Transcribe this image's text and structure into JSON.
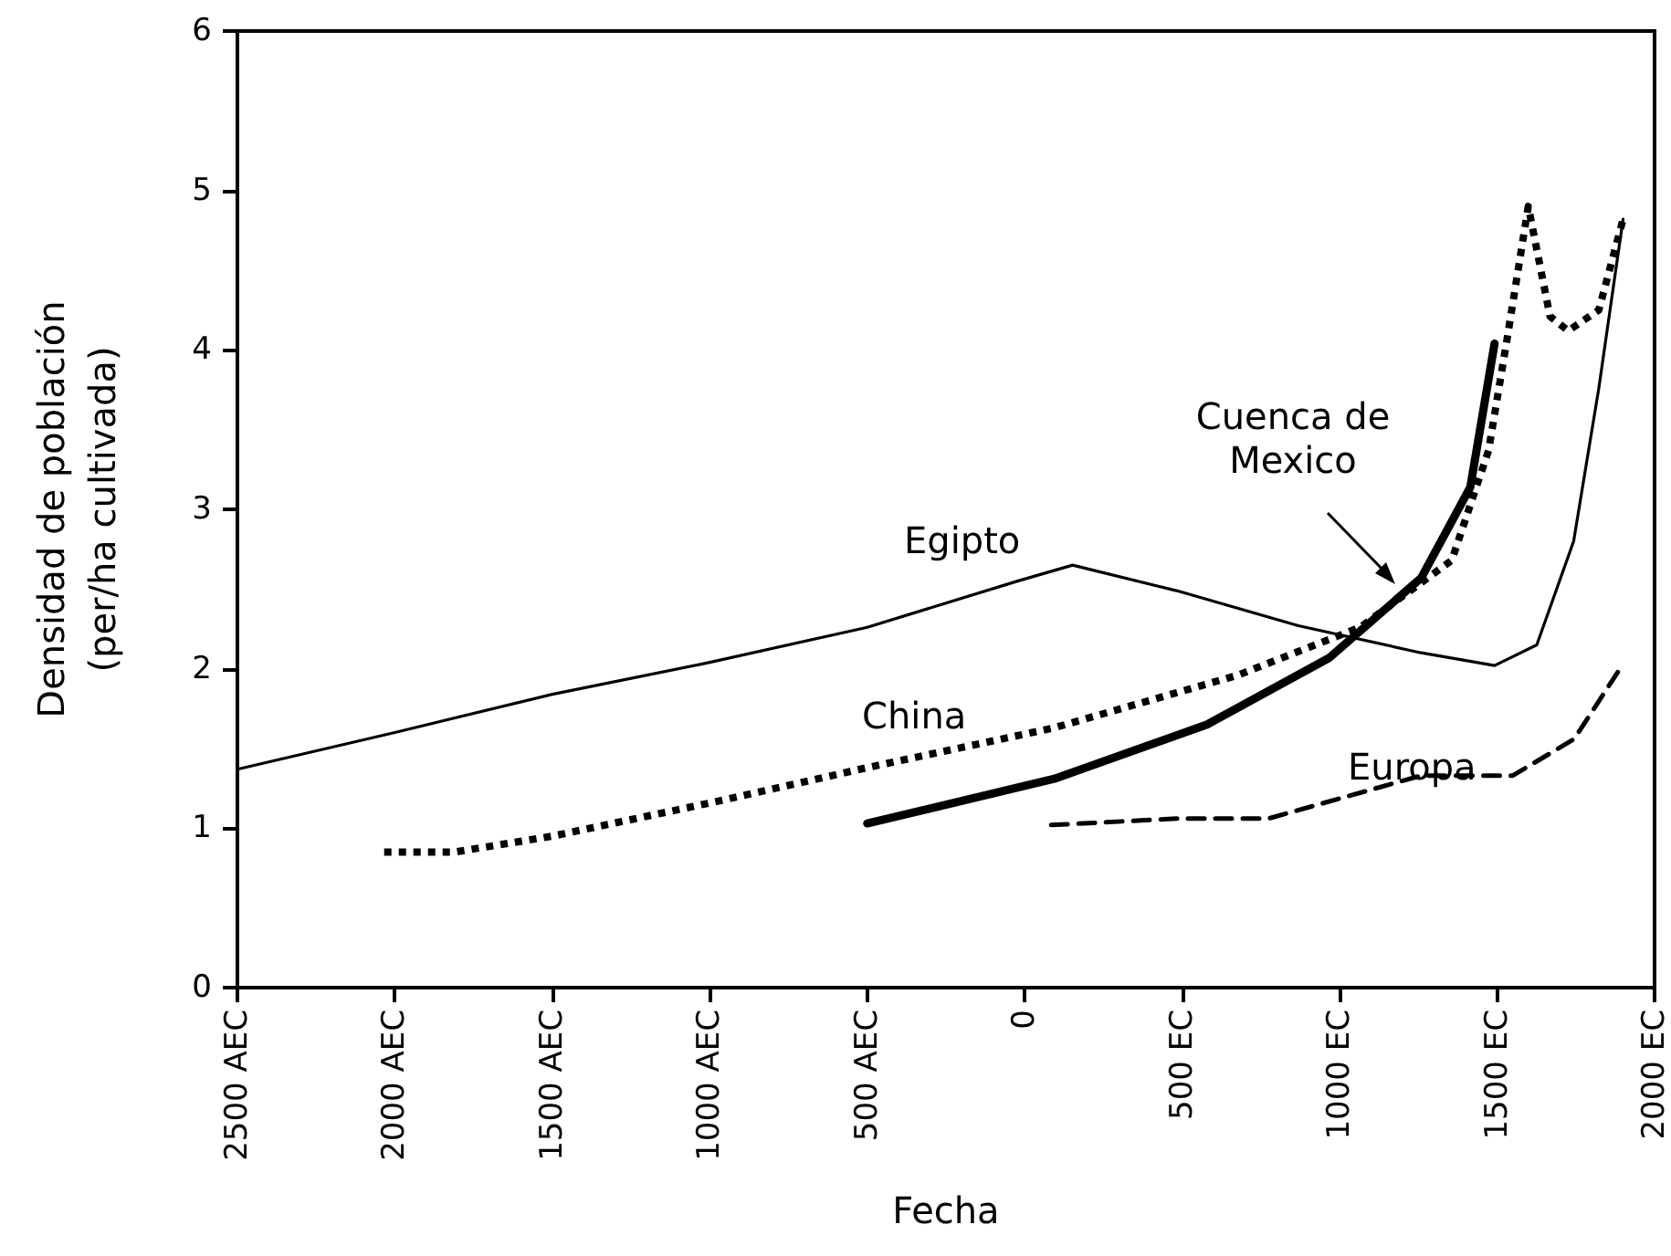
{
  "chart_data": {
    "type": "line",
    "xlabel": "Fecha",
    "ylabel": "Densidad de población\n(per/ha cultivada)",
    "xlim": [
      -2500,
      2000
    ],
    "xticks": [
      {
        "value": -2500,
        "label": "2500 AEC"
      },
      {
        "value": -2000,
        "label": "2000 AEC"
      },
      {
        "value": -1500,
        "label": "1500 AEC"
      },
      {
        "value": -1000,
        "label": "1000 AEC"
      },
      {
        "value": -500,
        "label": "500 AEC"
      },
      0,
      {
        "value": 500,
        "label": "500 EC"
      },
      {
        "value": 1000,
        "label": "1000 EC"
      },
      {
        "value": 1500,
        "label": "1500 EC"
      },
      {
        "value": 2000,
        "label": "2000 EC"
      }
    ],
    "ylim": [
      0,
      6
    ],
    "yticks": [
      0,
      1,
      2,
      3,
      4,
      5,
      6
    ],
    "grid": false,
    "legend": false,
    "marker": "none",
    "series": [
      {
        "name": "Egipto",
        "color": "#000000",
        "line_style": "solid",
        "x": [
          -2500,
          -2000,
          -1500,
          -1000,
          -500,
          -23,
          152,
          482,
          869,
          1259,
          1492,
          1626,
          1743,
          1823,
          1900
        ],
        "values": [
          1.37,
          1.6,
          1.84,
          2.04,
          2.26,
          2.55,
          2.65,
          2.49,
          2.27,
          2.1,
          2.02,
          2.15,
          2.8,
          3.76,
          4.82
        ]
      },
      {
        "name": "China",
        "color": "#000000",
        "line_style": "dotted",
        "x": [
          -2034,
          -1812,
          -1500,
          -996,
          -500,
          94,
          677,
          1065,
          1356,
          1473,
          1531,
          1599,
          1668,
          1726,
          1823,
          1900
        ],
        "values": [
          0.85,
          0.85,
          0.95,
          1.16,
          1.38,
          1.63,
          1.96,
          2.26,
          2.68,
          3.37,
          4.06,
          4.9,
          4.21,
          4.12,
          4.25,
          4.82
        ]
      },
      {
        "name": "Cuenca de\nMexico",
        "color": "#000000",
        "line_style": "solid",
        "x": [
          -500,
          94,
          579,
          968,
          1259,
          1415,
          1492
        ],
        "values": [
          1.03,
          1.31,
          1.65,
          2.07,
          2.57,
          3.14,
          4.04
        ]
      },
      {
        "name": "Europa",
        "color": "#000000",
        "line_style": "dashed",
        "x": [
          84,
          482,
          773,
          1259,
          1550,
          1745,
          1890
        ],
        "values": [
          1.02,
          1.06,
          1.06,
          1.33,
          1.33,
          1.56,
          2.0
        ]
      }
    ]
  }
}
